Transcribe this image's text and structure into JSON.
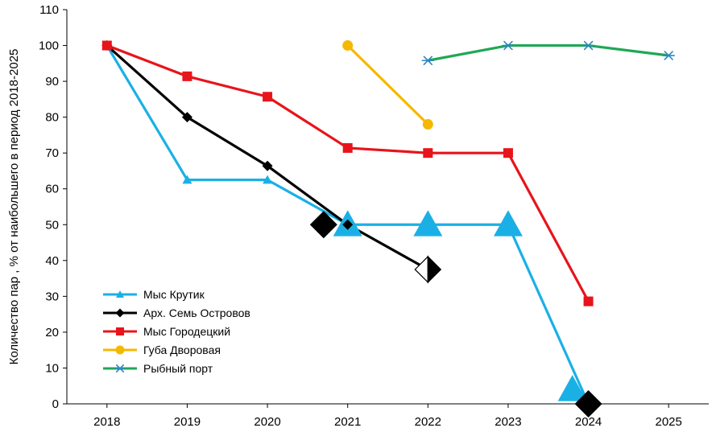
{
  "chart_data": {
    "type": "line",
    "title": "",
    "xlabel": "",
    "ylabel": "Количество пар , % от  наибольшего в период 2018-2025",
    "ylim": [
      0,
      110
    ],
    "yticks": [
      "0",
      "10",
      "20",
      "30",
      "40",
      "50",
      "60",
      "70",
      "80",
      "90",
      "100",
      "110"
    ],
    "categories": [
      "2018",
      "2019",
      "2020",
      "2021",
      "2022",
      "2023",
      "2024",
      "2025"
    ],
    "grid": false,
    "legend_position": "bottom-left",
    "series": [
      {
        "name": "Мыс Крутик",
        "color": "#1AB0E6",
        "marker": "triangle",
        "points": [
          [
            2018,
            100
          ],
          [
            2019,
            62.5
          ],
          [
            2020,
            62.5
          ],
          [
            2021,
            50
          ],
          [
            2022,
            50
          ],
          [
            2023,
            50
          ],
          [
            2024,
            0
          ]
        ],
        "large_marker_points": [
          [
            2021,
            50
          ],
          [
            2022,
            50
          ],
          [
            2023,
            50
          ],
          [
            2023.8,
            4
          ]
        ]
      },
      {
        "name": "Арх. Семь Островов",
        "color": "#000000",
        "marker": "diamond",
        "points": [
          [
            2018,
            100
          ],
          [
            2019,
            80
          ],
          [
            2020,
            66.4
          ],
          [
            2021,
            50
          ],
          [
            2022,
            37.5
          ]
        ],
        "large_marker_points": [
          [
            2020.7,
            50
          ],
          [
            2024,
            0
          ]
        ],
        "half_filled_marker_points": [
          [
            2022,
            37.5
          ]
        ]
      },
      {
        "name": "Мыс Городецкий",
        "color": "#E8141B",
        "marker": "square",
        "points": [
          [
            2018,
            100
          ],
          [
            2019,
            91.4
          ],
          [
            2020,
            85.7
          ],
          [
            2021,
            71.4
          ],
          [
            2022,
            70
          ],
          [
            2023,
            70
          ],
          [
            2024,
            28.6
          ]
        ]
      },
      {
        "name": "Губа Дворовая",
        "color": "#F5B800",
        "marker": "circle",
        "points": [
          [
            2021,
            100
          ],
          [
            2022,
            78
          ]
        ]
      },
      {
        "name": "Рыбный порт",
        "color": "#1FA855",
        "marker_color": "#2E86C1",
        "marker": "asterisk",
        "points": [
          [
            2022,
            95.8
          ],
          [
            2023,
            100
          ],
          [
            2024,
            100
          ],
          [
            2025,
            97.2
          ]
        ]
      }
    ]
  }
}
